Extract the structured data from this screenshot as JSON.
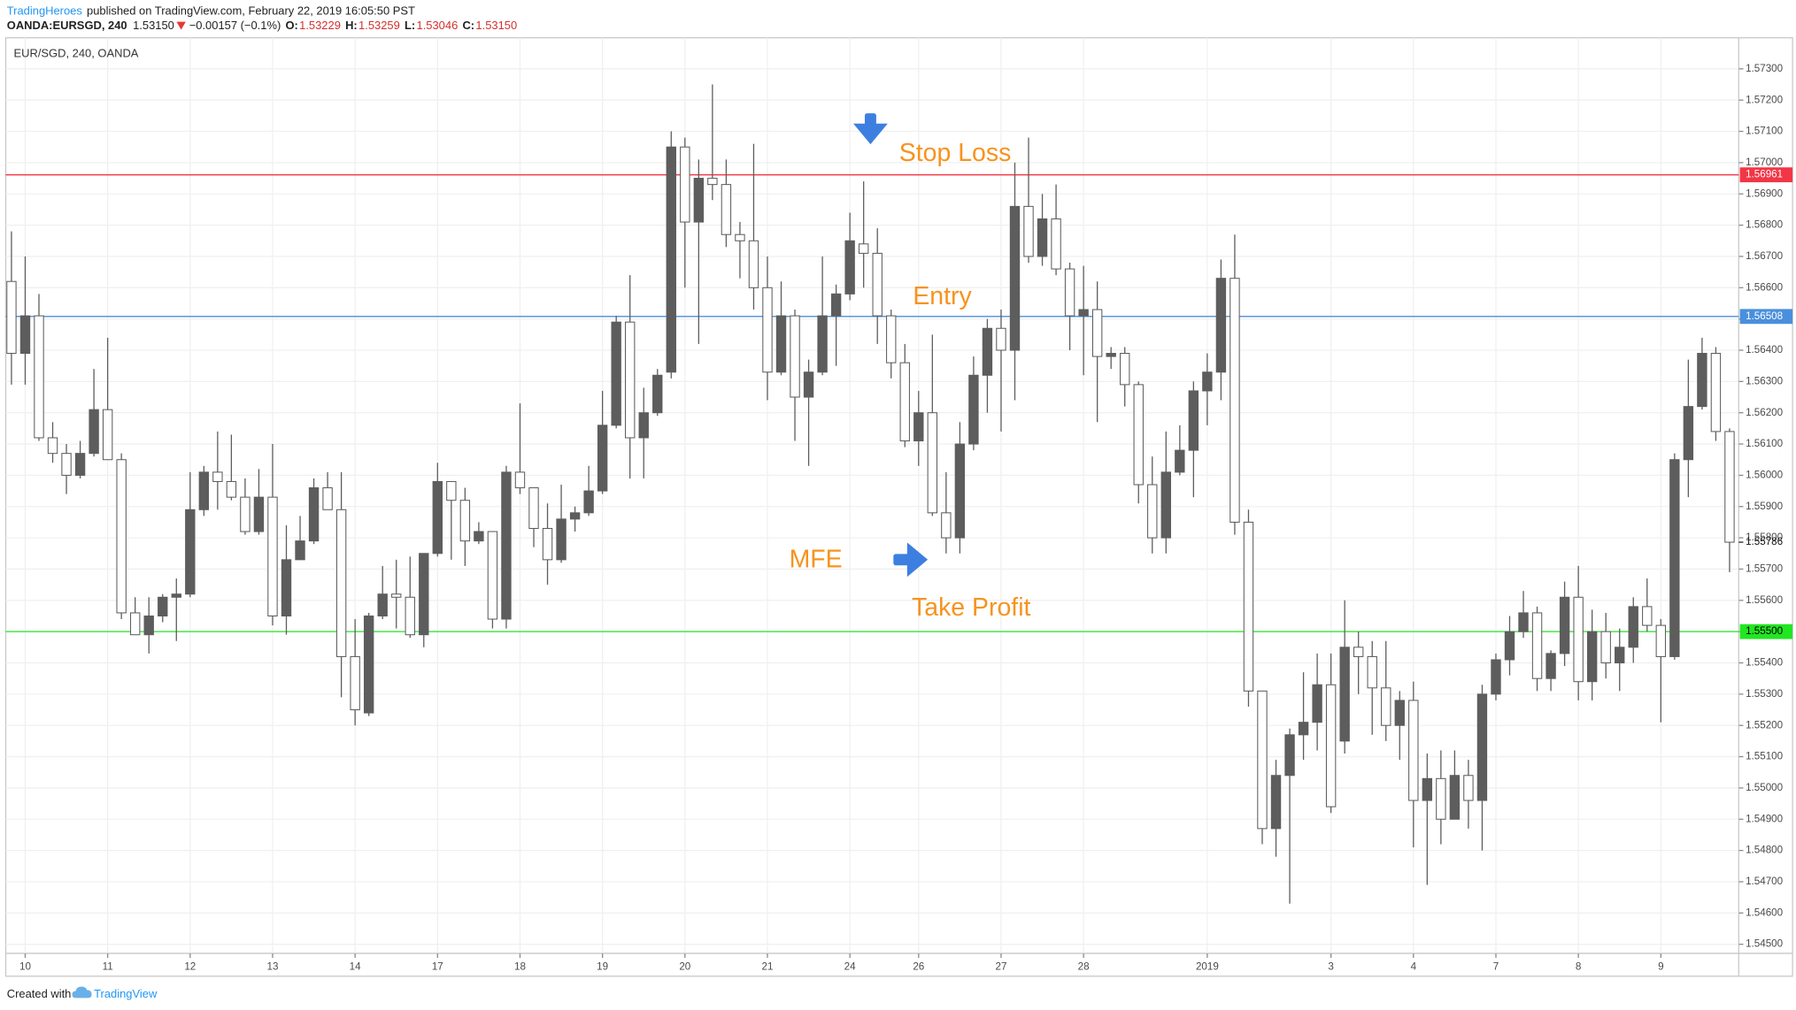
{
  "header": {
    "author": "TradingHeroes",
    "published": "published on TradingView.com, February 22, 2019 16:05:50 PST",
    "symbol": "OANDA:EURSGD, 240",
    "last": "1.53150",
    "change": "−0.00157 (−0.1%)",
    "open_label": "O:",
    "open": "1.53229",
    "high_label": "H:",
    "high": "1.53259",
    "low_label": "L:",
    "low": "1.53046",
    "close_label": "C:",
    "close": "1.53150"
  },
  "footer": {
    "created": "Created with",
    "brand": "TradingView"
  },
  "chart_data": {
    "type": "candlestick",
    "title": "EUR/SGD, 240, OANDA",
    "categories": [
      null,
      "10",
      null,
      null,
      null,
      null,
      null,
      "11",
      null,
      null,
      null,
      null,
      null,
      "12",
      null,
      null,
      null,
      null,
      null,
      "13",
      null,
      null,
      null,
      null,
      null,
      "14",
      null,
      null,
      null,
      null,
      null,
      "17",
      null,
      null,
      null,
      null,
      null,
      "18",
      null,
      null,
      null,
      null,
      null,
      "19",
      null,
      null,
      null,
      null,
      null,
      "20",
      null,
      null,
      null,
      null,
      null,
      "21",
      null,
      null,
      null,
      null,
      null,
      "24",
      null,
      null,
      null,
      null,
      "26",
      null,
      null,
      null,
      null,
      null,
      "27",
      null,
      null,
      null,
      null,
      null,
      "28",
      null,
      null,
      null,
      null,
      null,
      null,
      null,
      null,
      "2019",
      null,
      null,
      null,
      null,
      null,
      null,
      null,
      null,
      "3",
      null,
      null,
      null,
      null,
      null,
      "4",
      null,
      null,
      null,
      null,
      null,
      "7",
      null,
      null,
      null,
      null,
      null,
      "8",
      null,
      null,
      null,
      null,
      null,
      "9",
      null,
      null,
      null,
      null,
      null
    ],
    "open": [
      1.5662,
      1.5639,
      1.5651,
      1.5612,
      1.5607,
      1.56,
      1.5607,
      1.5621,
      1.5605,
      1.5556,
      1.5549,
      1.5555,
      1.5561,
      1.5562,
      1.5589,
      1.5601,
      1.5598,
      1.5593,
      1.5582,
      1.5593,
      1.5555,
      1.5573,
      1.5579,
      1.5596,
      1.5589,
      1.5542,
      1.5524,
      1.5555,
      1.5562,
      1.5561,
      1.5549,
      1.5575,
      1.5598,
      1.5592,
      1.5579,
      1.5582,
      1.5554,
      1.5601,
      1.5596,
      1.5583,
      1.5573,
      1.5586,
      1.5588,
      1.5595,
      1.5616,
      1.5649,
      1.5612,
      1.562,
      1.5633,
      1.5705,
      1.5681,
      1.5695,
      1.5693,
      1.5677,
      1.5675,
      1.566,
      1.5633,
      1.5651,
      1.5625,
      1.5633,
      1.5651,
      1.5658,
      1.5674,
      1.5671,
      1.5651,
      1.5636,
      1.5611,
      1.562,
      1.5588,
      1.558,
      1.561,
      1.5632,
      1.5647,
      1.564,
      1.5686,
      1.567,
      1.5682,
      1.5666,
      1.5651,
      1.5653,
      1.5638,
      1.5639,
      1.5629,
      1.5597,
      1.558,
      1.5601,
      1.5608,
      1.5627,
      1.5633,
      1.5663,
      1.5585,
      1.5531,
      1.5487,
      1.5504,
      1.5517,
      1.5521,
      1.5533,
      1.5515,
      1.5545,
      1.5542,
      1.5532,
      1.552,
      1.5528,
      1.5496,
      1.5503,
      1.549,
      1.5504,
      1.5496,
      1.553,
      1.5541,
      1.555,
      1.5556,
      1.5535,
      1.5543,
      1.5561,
      1.5534,
      1.555,
      1.554,
      1.5545,
      1.5558,
      1.5552,
      1.5542,
      1.5605,
      1.5622,
      1.5639,
      1.5614
    ],
    "high": [
      1.5678,
      1.567,
      1.5658,
      1.5617,
      1.561,
      1.5611,
      1.5634,
      1.5644,
      1.5607,
      1.5561,
      1.5561,
      1.5562,
      1.5567,
      1.5601,
      1.5603,
      1.5614,
      1.5613,
      1.5599,
      1.5602,
      1.561,
      1.5584,
      1.5587,
      1.5599,
      1.5601,
      1.5601,
      1.5554,
      1.5556,
      1.5571,
      1.5573,
      1.5574,
      1.5575,
      1.5604,
      1.5598,
      1.5596,
      1.5585,
      1.5582,
      1.5603,
      1.5623,
      1.5596,
      1.5591,
      1.5597,
      1.559,
      1.5603,
      1.5627,
      1.5651,
      1.5664,
      1.5628,
      1.5634,
      1.571,
      1.5708,
      1.5701,
      1.5725,
      1.5701,
      1.5681,
      1.5706,
      1.567,
      1.5662,
      1.5653,
      1.5637,
      1.567,
      1.5661,
      1.5684,
      1.5694,
      1.5679,
      1.5653,
      1.5642,
      1.5627,
      1.5645,
      1.5601,
      1.5617,
      1.5638,
      1.565,
      1.5653,
      1.57,
      1.5708,
      1.569,
      1.5693,
      1.5668,
      1.5667,
      1.5662,
      1.5641,
      1.5641,
      1.563,
      1.5606,
      1.5614,
      1.5616,
      1.563,
      1.5639,
      1.5669,
      1.5677,
      1.5589,
      1.5531,
      1.5509,
      1.5519,
      1.5537,
      1.5543,
      1.5543,
      1.556,
      1.555,
      1.5547,
      1.5547,
      1.5531,
      1.5534,
      1.5511,
      1.5512,
      1.5512,
      1.5509,
      1.5533,
      1.5543,
      1.5555,
      1.5563,
      1.5558,
      1.5544,
      1.5566,
      1.5571,
      1.5557,
      1.5556,
      1.5551,
      1.5561,
      1.5567,
      1.5554,
      1.5607,
      1.5637,
      1.5644,
      1.5641,
      1.5615
    ],
    "low": [
      1.5629,
      1.5629,
      1.5611,
      1.5604,
      1.5594,
      1.5599,
      1.5606,
      1.5605,
      1.5554,
      1.5549,
      1.5543,
      1.5553,
      1.5547,
      1.5561,
      1.5587,
      1.5589,
      1.5592,
      1.5581,
      1.5581,
      1.5552,
      1.5549,
      1.5573,
      1.5578,
      1.5589,
      1.5529,
      1.552,
      1.5523,
      1.5554,
      1.5551,
      1.5548,
      1.5545,
      1.5574,
      1.5573,
      1.5571,
      1.5578,
      1.5551,
      1.5551,
      1.5594,
      1.5577,
      1.5565,
      1.5572,
      1.5582,
      1.5587,
      1.5594,
      1.5615,
      1.5599,
      1.5599,
      1.5619,
      1.5631,
      1.566,
      1.5642,
      1.5688,
      1.5673,
      1.5663,
      1.5653,
      1.5624,
      1.5632,
      1.5611,
      1.5603,
      1.5632,
      1.5635,
      1.5656,
      1.566,
      1.5642,
      1.5631,
      1.5609,
      1.5603,
      1.5587,
      1.5575,
      1.5575,
      1.5608,
      1.562,
      1.5614,
      1.5624,
      1.5668,
      1.5667,
      1.5664,
      1.564,
      1.5632,
      1.5617,
      1.5634,
      1.5622,
      1.5591,
      1.5575,
      1.5575,
      1.56,
      1.5593,
      1.5616,
      1.5624,
      1.5581,
      1.5526,
      1.5482,
      1.5478,
      1.5463,
      1.5509,
      1.5512,
      1.5492,
      1.5511,
      1.553,
      1.5517,
      1.5515,
      1.5509,
      1.5481,
      1.5469,
      1.5482,
      1.549,
      1.5487,
      1.548,
      1.5528,
      1.5536,
      1.5548,
      1.5531,
      1.5531,
      1.5539,
      1.5528,
      1.5528,
      1.5535,
      1.5531,
      1.554,
      1.555,
      1.5521,
      1.5541,
      1.5593,
      1.5621,
      1.5611,
      1.5569
    ],
    "close": [
      1.5639,
      1.5651,
      1.5612,
      1.5607,
      1.56,
      1.5607,
      1.5621,
      1.5605,
      1.5556,
      1.5549,
      1.5555,
      1.5561,
      1.5562,
      1.5589,
      1.5601,
      1.5598,
      1.5593,
      1.5582,
      1.5593,
      1.5555,
      1.5573,
      1.5579,
      1.5596,
      1.5589,
      1.5542,
      1.5525,
      1.5555,
      1.5562,
      1.5561,
      1.5549,
      1.5575,
      1.5598,
      1.5592,
      1.5579,
      1.5582,
      1.5554,
      1.5601,
      1.5596,
      1.5583,
      1.5573,
      1.5586,
      1.5588,
      1.5595,
      1.5616,
      1.5649,
      1.5612,
      1.562,
      1.5632,
      1.5705,
      1.5681,
      1.5695,
      1.5693,
      1.5677,
      1.5675,
      1.566,
      1.5633,
      1.5651,
      1.5625,
      1.5633,
      1.5651,
      1.5658,
      1.5675,
      1.5671,
      1.5651,
      1.5636,
      1.5611,
      1.562,
      1.5588,
      1.558,
      1.561,
      1.5632,
      1.5647,
      1.564,
      1.5686,
      1.567,
      1.5682,
      1.5666,
      1.5651,
      1.5653,
      1.5638,
      1.5639,
      1.5629,
      1.5597,
      1.558,
      1.5601,
      1.5608,
      1.5627,
      1.5633,
      1.5663,
      1.5585,
      1.5531,
      1.5487,
      1.5504,
      1.5517,
      1.5521,
      1.5533,
      1.5494,
      1.5545,
      1.5542,
      1.5532,
      1.552,
      1.5528,
      1.5496,
      1.5503,
      1.549,
      1.5504,
      1.5496,
      1.553,
      1.5541,
      1.555,
      1.5556,
      1.5535,
      1.5543,
      1.5561,
      1.5534,
      1.555,
      1.554,
      1.5545,
      1.5558,
      1.5552,
      1.5542,
      1.5605,
      1.5622,
      1.5639,
      1.5614,
      1.55786
    ],
    "up_color": "#5d5d5d",
    "down_color": "#ffffff",
    "wick_color": "#5d5d5d",
    "ylim": [
      1.54471,
      1.57392
    ],
    "yticks": [
      {
        "value": 1.545,
        "label": "1.54500"
      },
      {
        "value": 1.546,
        "label": "1.54600"
      },
      {
        "value": 1.547,
        "label": "1.54700"
      },
      {
        "value": 1.548,
        "label": "1.54800"
      },
      {
        "value": 1.549,
        "label": "1.54900"
      },
      {
        "value": 1.55,
        "label": "1.55000"
      },
      {
        "value": 1.551,
        "label": "1.55100"
      },
      {
        "value": 1.552,
        "label": "1.55200"
      },
      {
        "value": 1.553,
        "label": "1.55300"
      },
      {
        "value": 1.554,
        "label": "1.55400"
      },
      {
        "value": 1.555,
        "label": "1.55500"
      },
      {
        "value": 1.556,
        "label": "1.55600"
      },
      {
        "value": 1.557,
        "label": "1.55700"
      },
      {
        "value": 1.558,
        "label": "1.55800"
      },
      {
        "value": 1.559,
        "label": "1.55900"
      },
      {
        "value": 1.56,
        "label": "1.56000"
      },
      {
        "value": 1.561,
        "label": "1.56100"
      },
      {
        "value": 1.562,
        "label": "1.56200"
      },
      {
        "value": 1.563,
        "label": "1.56300"
      },
      {
        "value": 1.564,
        "label": "1.56400"
      },
      {
        "value": 1.565,
        "label": "1.56500"
      },
      {
        "value": 1.566,
        "label": "1.56600"
      },
      {
        "value": 1.567,
        "label": "1.56700"
      },
      {
        "value": 1.568,
        "label": "1.56800"
      },
      {
        "value": 1.569,
        "label": "1.56900"
      },
      {
        "value": 1.57,
        "label": "1.57000"
      },
      {
        "value": 1.571,
        "label": "1.57100"
      },
      {
        "value": 1.572,
        "label": "1.57200"
      },
      {
        "value": 1.573,
        "label": "1.57300"
      }
    ],
    "grid": true,
    "last_price": 1.55786,
    "levels": [
      {
        "value": 1.56961,
        "color": "#f23645",
        "label_color": "#ffffff",
        "annotation": "Stop Loss"
      },
      {
        "value": 1.56508,
        "color": "#4a8fdc",
        "label_color": "#ffffff",
        "annotation": "Entry"
      },
      {
        "value": 1.555,
        "value_label": "1.55500",
        "color": "#22e622",
        "label_color": "#000000",
        "annotation": "Take Profit"
      }
    ],
    "mfe_label": "MFE",
    "annotation_color": "#f7931e"
  }
}
